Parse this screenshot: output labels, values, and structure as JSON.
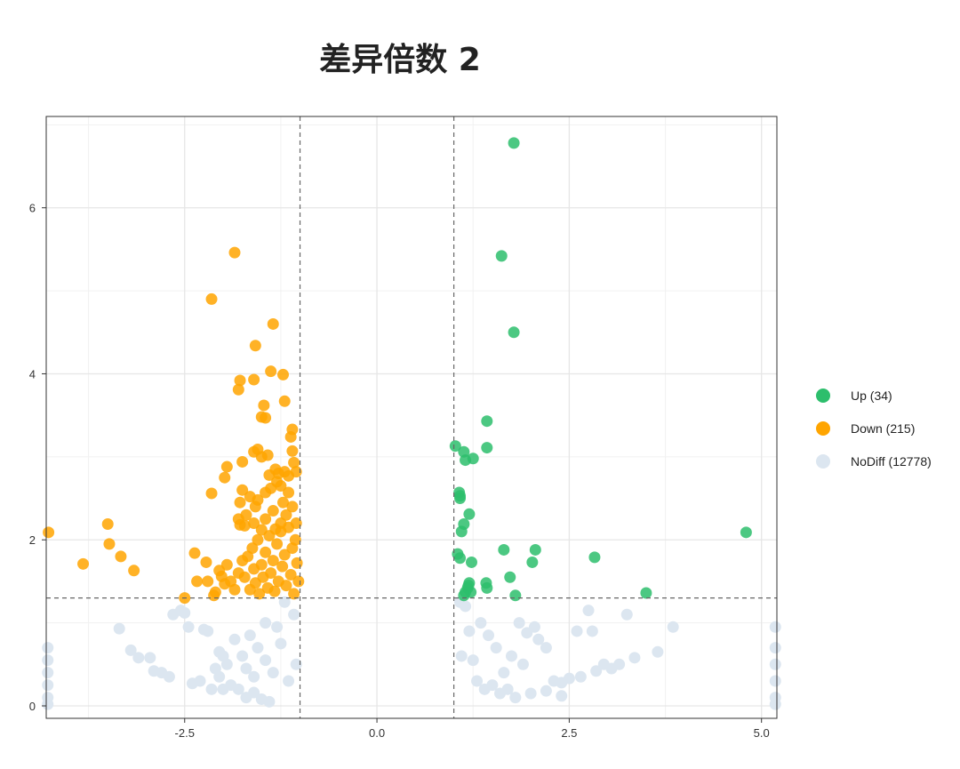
{
  "chart_data": {
    "type": "scatter",
    "title": "差异倍数 2",
    "xlabel": "",
    "ylabel": "",
    "xlim": [
      -4.3,
      5.2
    ],
    "ylim": [
      -0.15,
      7.1
    ],
    "x_ticks": [
      -2.5,
      0.0,
      2.5,
      5.0
    ],
    "x_tick_labels": [
      "-2.5",
      "0.0",
      "2.5",
      "5.0"
    ],
    "y_ticks": [
      0,
      2,
      4,
      6
    ],
    "y_tick_labels": [
      "0",
      "2",
      "4",
      "6"
    ],
    "grid": true,
    "legend_position": "right",
    "thresholds": {
      "x": [
        -1,
        1
      ],
      "y": 1.3
    },
    "series": [
      {
        "name": "Up (34)",
        "color": "#2DBE6C",
        "points": [
          [
            1.78,
            6.78
          ],
          [
            1.62,
            5.42
          ],
          [
            1.78,
            4.5
          ],
          [
            1.43,
            3.43
          ],
          [
            1.43,
            3.11
          ],
          [
            1.02,
            3.13
          ],
          [
            1.13,
            3.06
          ],
          [
            1.15,
            2.96
          ],
          [
            1.25,
            2.98
          ],
          [
            1.07,
            2.57
          ],
          [
            1.08,
            2.53
          ],
          [
            1.08,
            2.5
          ],
          [
            1.2,
            2.31
          ],
          [
            1.13,
            2.19
          ],
          [
            1.1,
            2.1
          ],
          [
            4.8,
            2.09
          ],
          [
            1.65,
            1.88
          ],
          [
            2.06,
            1.88
          ],
          [
            1.05,
            1.83
          ],
          [
            1.08,
            1.78
          ],
          [
            1.23,
            1.73
          ],
          [
            2.02,
            1.73
          ],
          [
            2.83,
            1.79
          ],
          [
            1.73,
            1.55
          ],
          [
            1.42,
            1.48
          ],
          [
            1.2,
            1.48
          ],
          [
            1.43,
            1.42
          ],
          [
            1.18,
            1.42
          ],
          [
            1.15,
            1.37
          ],
          [
            1.22,
            1.37
          ],
          [
            1.13,
            1.33
          ],
          [
            1.8,
            1.33
          ],
          [
            3.5,
            1.36
          ],
          [
            1.19,
            1.45
          ]
        ]
      },
      {
        "name": "Down (215)",
        "color": "#FFA500",
        "points": [
          [
            -4.27,
            2.09
          ],
          [
            -3.5,
            2.19
          ],
          [
            -3.48,
            1.95
          ],
          [
            -3.33,
            1.8
          ],
          [
            -3.16,
            1.63
          ],
          [
            -3.82,
            1.71
          ],
          [
            -2.5,
            1.3
          ],
          [
            -2.37,
            1.84
          ],
          [
            -2.34,
            1.5
          ],
          [
            -2.2,
            1.5
          ],
          [
            -2.22,
            1.73
          ],
          [
            -2.1,
            1.37
          ],
          [
            -2.12,
            1.33
          ],
          [
            -2.05,
            1.63
          ],
          [
            -2.02,
            1.56
          ],
          [
            -1.98,
            1.47
          ],
          [
            -1.95,
            1.7
          ],
          [
            -1.9,
            1.5
          ],
          [
            -1.85,
            1.4
          ],
          [
            -1.8,
            1.6
          ],
          [
            -1.75,
            1.75
          ],
          [
            -1.72,
            1.55
          ],
          [
            -1.68,
            1.8
          ],
          [
            -1.65,
            1.4
          ],
          [
            -1.62,
            1.9
          ],
          [
            -1.6,
            1.65
          ],
          [
            -1.58,
            1.48
          ],
          [
            -1.55,
            2.0
          ],
          [
            -1.53,
            1.35
          ],
          [
            -1.5,
            1.7
          ],
          [
            -1.48,
            1.55
          ],
          [
            -1.45,
            1.85
          ],
          [
            -1.42,
            1.42
          ],
          [
            -1.4,
            2.05
          ],
          [
            -1.38,
            1.6
          ],
          [
            -1.35,
            1.75
          ],
          [
            -1.33,
            1.38
          ],
          [
            -1.3,
            1.95
          ],
          [
            -1.28,
            1.5
          ],
          [
            -1.25,
            2.1
          ],
          [
            -1.23,
            1.68
          ],
          [
            -1.2,
            1.82
          ],
          [
            -1.18,
            1.45
          ],
          [
            -1.15,
            2.15
          ],
          [
            -1.12,
            1.58
          ],
          [
            -1.1,
            1.9
          ],
          [
            -1.08,
            1.35
          ],
          [
            -1.06,
            2.0
          ],
          [
            -1.04,
            1.72
          ],
          [
            -1.02,
            1.5
          ],
          [
            -1.85,
            5.46
          ],
          [
            -2.15,
            4.9
          ],
          [
            -1.35,
            4.6
          ],
          [
            -1.58,
            4.34
          ],
          [
            -1.38,
            4.03
          ],
          [
            -1.22,
            3.99
          ],
          [
            -1.6,
            3.93
          ],
          [
            -1.78,
            3.92
          ],
          [
            -1.8,
            3.81
          ],
          [
            -1.47,
            3.62
          ],
          [
            -1.2,
            3.67
          ],
          [
            -1.5,
            3.48
          ],
          [
            -1.45,
            3.47
          ],
          [
            -1.1,
            3.33
          ],
          [
            -1.12,
            3.24
          ],
          [
            -1.1,
            3.07
          ],
          [
            -1.55,
            3.09
          ],
          [
            -1.42,
            3.02
          ],
          [
            -1.6,
            3.06
          ],
          [
            -1.5,
            3.0
          ],
          [
            -1.75,
            2.94
          ],
          [
            -1.08,
            2.93
          ],
          [
            -1.32,
            2.85
          ],
          [
            -1.28,
            2.8
          ],
          [
            -1.4,
            2.78
          ],
          [
            -1.2,
            2.82
          ],
          [
            -1.15,
            2.77
          ],
          [
            -1.05,
            2.82
          ],
          [
            -1.95,
            2.88
          ],
          [
            -1.98,
            2.75
          ],
          [
            -1.3,
            2.7
          ],
          [
            -1.25,
            2.65
          ],
          [
            -1.38,
            2.62
          ],
          [
            -1.45,
            2.57
          ],
          [
            -1.15,
            2.57
          ],
          [
            -1.75,
            2.6
          ],
          [
            -2.15,
            2.56
          ],
          [
            -1.65,
            2.52
          ],
          [
            -1.55,
            2.48
          ],
          [
            -1.78,
            2.45
          ],
          [
            -1.22,
            2.45
          ],
          [
            -1.1,
            2.4
          ],
          [
            -1.58,
            2.4
          ],
          [
            -1.35,
            2.35
          ],
          [
            -1.7,
            2.3
          ],
          [
            -1.18,
            2.3
          ],
          [
            -1.45,
            2.25
          ],
          [
            -1.8,
            2.25
          ],
          [
            -1.25,
            2.2
          ],
          [
            -1.6,
            2.2
          ],
          [
            -1.05,
            2.2
          ],
          [
            -1.72,
            2.17
          ],
          [
            -1.32,
            2.13
          ],
          [
            -1.5,
            2.12
          ],
          [
            -1.78,
            2.18
          ]
        ]
      },
      {
        "name": "NoDiff (12778)",
        "color": "#DCE6F0",
        "points": [
          [
            -3.35,
            0.93
          ],
          [
            -3.2,
            0.67
          ],
          [
            -3.1,
            0.58
          ],
          [
            -2.95,
            0.58
          ],
          [
            -2.9,
            0.42
          ],
          [
            -2.8,
            0.4
          ],
          [
            -2.7,
            0.35
          ],
          [
            -2.65,
            1.1
          ],
          [
            -2.55,
            1.15
          ],
          [
            -2.5,
            1.12
          ],
          [
            -2.45,
            0.95
          ],
          [
            -2.4,
            0.27
          ],
          [
            -2.3,
            0.3
          ],
          [
            -2.25,
            0.92
          ],
          [
            -2.2,
            0.9
          ],
          [
            -2.15,
            0.2
          ],
          [
            -2.1,
            0.45
          ],
          [
            -2.05,
            0.35
          ],
          [
            -2.0,
            0.6
          ],
          [
            -1.9,
            0.25
          ],
          [
            -1.8,
            0.2
          ],
          [
            -1.7,
            0.1
          ],
          [
            -1.6,
            0.16
          ],
          [
            -1.5,
            0.08
          ],
          [
            -1.4,
            0.05
          ],
          [
            -4.28,
            0.7
          ],
          [
            -4.28,
            0.55
          ],
          [
            -4.28,
            0.4
          ],
          [
            -4.28,
            0.25
          ],
          [
            -4.28,
            0.1
          ],
          [
            -4.28,
            0.02
          ],
          [
            5.18,
            0.95
          ],
          [
            5.18,
            0.7
          ],
          [
            5.18,
            0.5
          ],
          [
            5.18,
            0.3
          ],
          [
            5.18,
            0.1
          ],
          [
            5.18,
            0.02
          ],
          [
            3.85,
            0.95
          ],
          [
            3.65,
            0.65
          ],
          [
            3.35,
            0.58
          ],
          [
            3.25,
            1.1
          ],
          [
            3.15,
            0.5
          ],
          [
            3.05,
            0.45
          ],
          [
            2.95,
            0.5
          ],
          [
            2.85,
            0.42
          ],
          [
            2.8,
            0.9
          ],
          [
            2.75,
            1.15
          ],
          [
            2.65,
            0.35
          ],
          [
            2.6,
            0.9
          ],
          [
            2.5,
            0.33
          ],
          [
            2.4,
            0.28
          ],
          [
            2.3,
            0.3
          ],
          [
            2.2,
            0.7
          ],
          [
            2.1,
            0.8
          ],
          [
            2.05,
            0.95
          ],
          [
            1.95,
            0.88
          ],
          [
            1.85,
            1.0
          ],
          [
            1.75,
            0.6
          ],
          [
            1.65,
            0.4
          ],
          [
            1.55,
            0.7
          ],
          [
            1.45,
            0.85
          ],
          [
            1.35,
            1.0
          ],
          [
            1.25,
            0.55
          ],
          [
            1.2,
            0.9
          ],
          [
            1.15,
            1.2
          ],
          [
            1.08,
            1.25
          ],
          [
            -1.08,
            1.1
          ],
          [
            -1.2,
            1.25
          ],
          [
            -1.3,
            0.95
          ],
          [
            -1.45,
            1.0
          ],
          [
            -1.55,
            0.7
          ],
          [
            -1.65,
            0.85
          ],
          [
            -1.75,
            0.6
          ],
          [
            -1.85,
            0.8
          ],
          [
            -1.95,
            0.5
          ],
          [
            -2.05,
            0.65
          ],
          [
            -1.05,
            0.5
          ],
          [
            -1.15,
            0.3
          ],
          [
            -1.25,
            0.75
          ],
          [
            -1.35,
            0.4
          ],
          [
            -1.45,
            0.55
          ],
          [
            -1.6,
            0.35
          ],
          [
            -1.7,
            0.45
          ],
          [
            -2.0,
            0.2
          ],
          [
            1.3,
            0.3
          ],
          [
            1.4,
            0.2
          ],
          [
            1.5,
            0.25
          ],
          [
            1.6,
            0.15
          ],
          [
            1.7,
            0.2
          ],
          [
            1.8,
            0.1
          ],
          [
            2.0,
            0.15
          ],
          [
            2.2,
            0.18
          ],
          [
            2.4,
            0.12
          ],
          [
            1.9,
            0.5
          ],
          [
            1.1,
            0.6
          ]
        ]
      }
    ]
  }
}
